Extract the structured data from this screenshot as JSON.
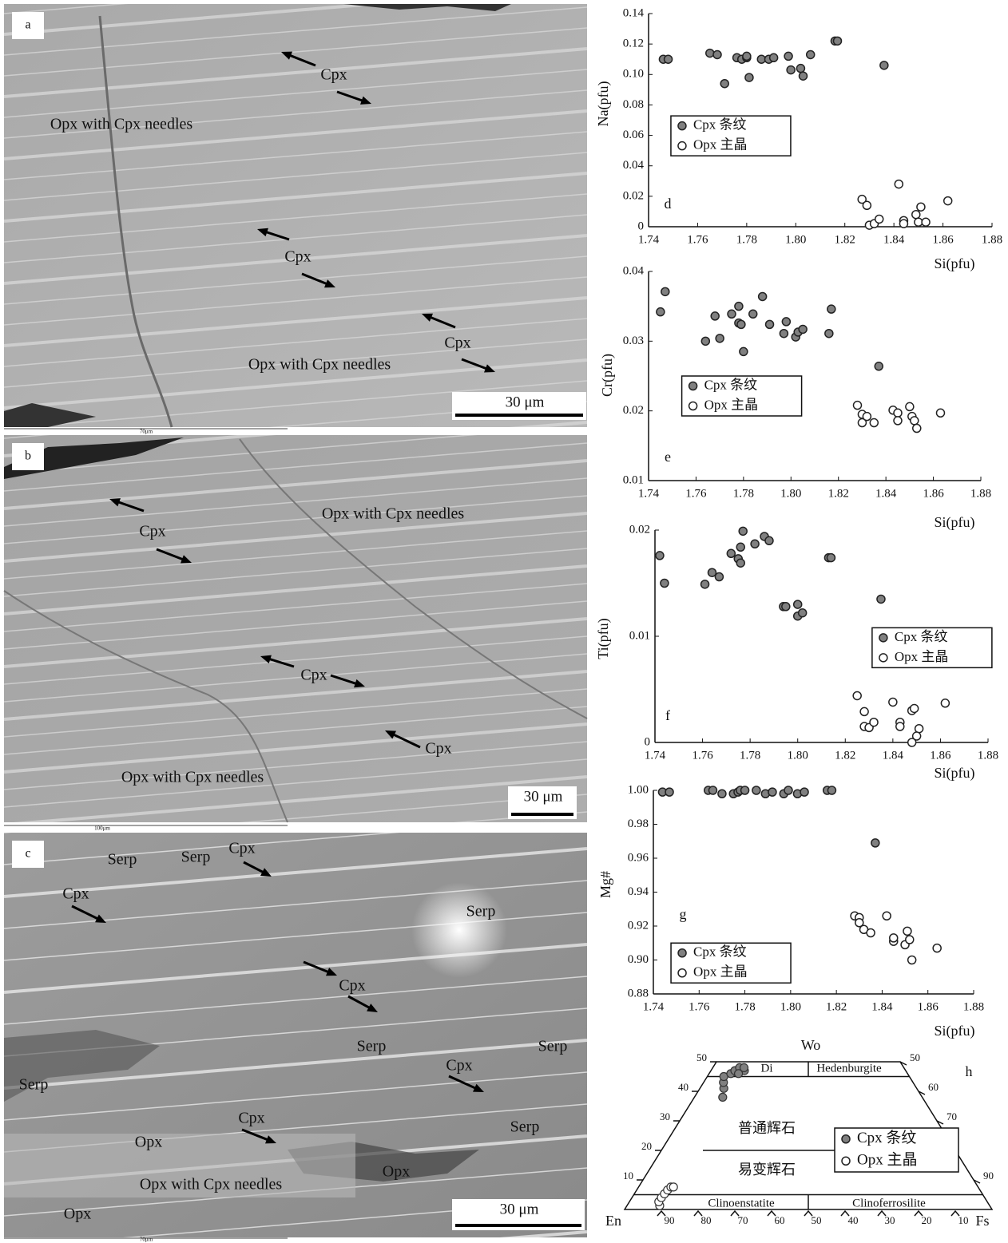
{
  "images": [
    {
      "panel": "a",
      "labels": [
        "Cpx",
        "Opx with Cpx needles",
        "Cpx",
        "Opx with Cpx needles",
        "Cpx"
      ],
      "scale_bar": "30 μm",
      "frame_label": "70μm"
    },
    {
      "panel": "b",
      "labels": [
        "Cpx",
        "Opx with Cpx needles",
        "Cpx",
        "Cpx",
        "Opx with Cpx needles"
      ],
      "scale_bar": "30 μm",
      "frame_label": "100μm"
    },
    {
      "panel": "c",
      "labels": [
        "Serp",
        "Serp",
        "Cpx",
        "Cpx",
        "Serp",
        "Cpx",
        "Serp",
        "Serp",
        "Serp",
        "Cpx",
        "Opx",
        "Cpx",
        "Serp",
        "Opx",
        "Opx with Cpx needles",
        "Opx"
      ],
      "scale_bar": "30 μm",
      "frame_label": "70μm"
    }
  ],
  "chart_data": [
    {
      "type": "scatter",
      "panel": "d",
      "x_label": "Si(pfu)",
      "y_label": "Na(pfu)",
      "legend": "center left",
      "xlim": [
        1.74,
        1.88
      ],
      "xticks": [
        1.74,
        1.76,
        1.78,
        {
          "value": 1.8,
          "label": "1.80"
        },
        1.82,
        1.84,
        1.86,
        1.88
      ],
      "ylim": [
        0,
        0.14
      ],
      "yticks": [
        0,
        0.02,
        0.04,
        0.06,
        0.08,
        {
          "value": 0.1,
          "label": "0.10"
        },
        0.12,
        0.14
      ],
      "series": [
        {
          "name": "Cpx 条纹",
          "color": "#808080",
          "x": [
            1.746,
            1.748,
            1.765,
            1.768,
            1.771,
            1.776,
            1.778,
            1.78,
            1.78,
            1.781,
            1.786,
            1.789,
            1.791,
            1.797,
            1.798,
            1.802,
            1.803,
            1.806,
            1.816,
            1.817,
            1.836
          ],
          "values": [
            0.11,
            0.11,
            0.114,
            0.113,
            0.094,
            0.111,
            0.11,
            0.111,
            0.112,
            0.098,
            0.11,
            0.11,
            0.111,
            0.112,
            0.103,
            0.104,
            0.099,
            0.113,
            0.122,
            0.122,
            0.106
          ]
        },
        {
          "name": "Opx 主晶",
          "color": "#ffffff",
          "x": [
            1.827,
            1.829,
            1.83,
            1.832,
            1.834,
            1.842,
            1.844,
            1.844,
            1.849,
            1.851,
            1.85,
            1.853,
            1.862
          ],
          "values": [
            0.018,
            0.014,
            0.001,
            0.002,
            0.005,
            0.028,
            0.004,
            0.002,
            0.008,
            0.013,
            0.003,
            0.003,
            0.017
          ]
        }
      ]
    },
    {
      "type": "scatter",
      "panel": "e",
      "x_label": "Si(pfu)",
      "y_label": "Cr(pfu)",
      "legend": "lower left",
      "xlim": [
        1.74,
        1.88
      ],
      "xticks": [
        1.74,
        1.76,
        1.78,
        {
          "value": 1.8,
          "label": "1.80"
        },
        1.82,
        1.84,
        1.86,
        1.88
      ],
      "ylim": [
        0.01,
        0.04
      ],
      "yticks": [
        0.01,
        0.02,
        0.03,
        0.04
      ],
      "series": [
        {
          "name": "Cpx 条纹",
          "color": "#808080",
          "x": [
            1.745,
            1.747,
            1.764,
            1.768,
            1.77,
            1.775,
            1.778,
            1.778,
            1.779,
            1.78,
            1.784,
            1.788,
            1.791,
            1.797,
            1.798,
            1.802,
            1.803,
            1.805,
            1.816,
            1.817,
            1.837
          ],
          "values": [
            0.0342,
            0.0371,
            0.03,
            0.0336,
            0.0304,
            0.0339,
            0.0326,
            0.035,
            0.0324,
            0.0285,
            0.0339,
            0.0364,
            0.0324,
            0.0311,
            0.0328,
            0.0306,
            0.0313,
            0.0317,
            0.0311,
            0.0346,
            0.0264
          ]
        },
        {
          "name": "Opx 主晶",
          "color": "#ffffff",
          "x": [
            1.828,
            1.83,
            1.83,
            1.832,
            1.835,
            1.843,
            1.845,
            1.845,
            1.85,
            1.851,
            1.852,
            1.853,
            1.863
          ],
          "values": [
            0.0208,
            0.0195,
            0.0183,
            0.0192,
            0.0183,
            0.0201,
            0.0197,
            0.0186,
            0.0206,
            0.0192,
            0.0186,
            0.0175,
            0.0197
          ]
        }
      ]
    },
    {
      "type": "scatter",
      "panel": "f",
      "x_label": "Si(pfu)",
      "y_label": "Ti(pfu)",
      "legend": "center right",
      "xlim": [
        1.74,
        1.88
      ],
      "xticks": [
        1.74,
        1.76,
        1.78,
        {
          "value": 1.8,
          "label": "1.80"
        },
        1.82,
        1.84,
        1.86,
        1.88
      ],
      "ylim": [
        0,
        0.02
      ],
      "yticks": [
        0,
        0.01,
        0.02
      ],
      "series": [
        {
          "name": "Cpx 条纹",
          "color": "#808080",
          "x": [
            1.742,
            1.744,
            1.761,
            1.764,
            1.767,
            1.772,
            1.775,
            1.776,
            1.776,
            1.777,
            1.782,
            1.786,
            1.788,
            1.794,
            1.795,
            1.8,
            1.8,
            1.802,
            1.813,
            1.814,
            1.835
          ],
          "values": [
            0.0176,
            0.015,
            0.0149,
            0.016,
            0.0156,
            0.0178,
            0.0173,
            0.0169,
            0.0184,
            0.0199,
            0.0187,
            0.0194,
            0.019,
            0.0128,
            0.0128,
            0.0119,
            0.013,
            0.0122,
            0.0174,
            0.0174,
            0.0135
          ]
        },
        {
          "name": "Opx 主晶",
          "color": "#ffffff",
          "x": [
            1.825,
            1.828,
            1.828,
            1.83,
            1.832,
            1.84,
            1.843,
            1.843,
            1.848,
            1.849,
            1.851,
            1.85,
            1.848,
            1.862
          ],
          "values": [
            0.0044,
            0.0029,
            0.0015,
            0.0014,
            0.0019,
            0.0038,
            0.0019,
            0.0015,
            0.003,
            0.0032,
            0.0013,
            0.0006,
            0,
            0.0037
          ]
        }
      ]
    },
    {
      "type": "scatter",
      "panel": "g",
      "x_label": "Si(pfu)",
      "y_label": "Mg#",
      "legend": "bottom left",
      "xlim": [
        1.74,
        1.88
      ],
      "xticks": [
        1.74,
        1.76,
        1.78,
        {
          "value": 1.8,
          "label": "1.80"
        },
        1.82,
        1.84,
        1.86,
        1.88
      ],
      "ylim": [
        0.88,
        1.0
      ],
      "yticks": [
        0.88,
        {
          "value": 0.9,
          "label": "0.90"
        },
        0.92,
        0.94,
        0.96,
        0.98,
        {
          "value": 1.0,
          "label": "1.00"
        }
      ],
      "series": [
        {
          "name": "Cpx 条纹",
          "color": "#808080",
          "x": [
            1.744,
            1.747,
            1.764,
            1.766,
            1.77,
            1.775,
            1.777,
            1.778,
            1.78,
            1.785,
            1.789,
            1.792,
            1.797,
            1.799,
            1.803,
            1.806,
            1.816,
            1.818,
            1.837
          ],
          "values": [
            0.999,
            0.999,
            1.0,
            1.0,
            0.998,
            0.998,
            0.999,
            1.0,
            1.0,
            1.0,
            0.998,
            0.999,
            0.998,
            1.0,
            0.998,
            0.999,
            1.0,
            1.0,
            0.969
          ]
        },
        {
          "name": "Opx 主晶",
          "color": "#ffffff",
          "x": [
            1.828,
            1.83,
            1.83,
            1.832,
            1.835,
            1.842,
            1.845,
            1.845,
            1.85,
            1.851,
            1.852,
            1.853,
            1.864
          ],
          "values": [
            0.926,
            0.925,
            0.922,
            0.918,
            0.916,
            0.926,
            0.911,
            0.913,
            0.909,
            0.917,
            0.912,
            0.9,
            0.907
          ]
        }
      ]
    },
    {
      "type": "ternary",
      "panel": "h",
      "apex_labels": [
        "Wo",
        "En",
        "Fs"
      ],
      "field_labels": [
        "Di",
        "Hedenburgite",
        "普通辉石",
        "易变辉石",
        "Clinoenstatite",
        "Clinoferrosilite"
      ],
      "wo_ticks": [
        10,
        20,
        30,
        40,
        50
      ],
      "fs_ticks": [
        50,
        60,
        70,
        90
      ],
      "en_ticks": [
        90,
        80,
        70,
        60,
        50,
        40,
        30,
        20,
        10
      ],
      "series": [
        {
          "name": "Cpx 条纹",
          "color": "#808080",
          "wo": [
            38,
            41,
            43,
            45,
            46,
            47,
            48,
            47,
            48,
            46
          ],
          "fs": [
            7.7,
            6.5,
            5.4,
            4.5,
            5.9,
            6.5,
            7.3,
            9.1,
            8.5,
            8
          ]
        },
        {
          "name": "Opx 主晶",
          "color": "#ffffff",
          "wo": [
            1.3,
            2.6,
            4,
            5.3,
            6.6,
            7.6,
            7.6
          ],
          "fs": [
            8.9,
            8,
            8,
            8.2,
            8.4,
            8.8,
            9.5
          ]
        }
      ]
    }
  ]
}
